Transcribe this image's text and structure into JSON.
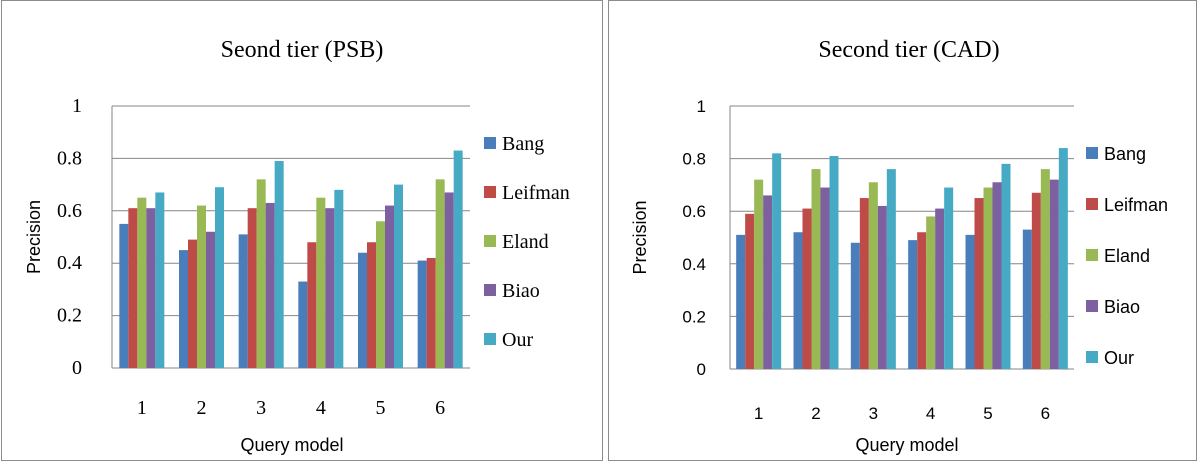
{
  "chart_data": [
    {
      "type": "bar",
      "title": "Seond tier (PSB)",
      "xlabel": "Query model",
      "ylabel": "Precision",
      "categories": [
        "1",
        "2",
        "3",
        "4",
        "5",
        "6"
      ],
      "yticks": [
        "0",
        "0.2",
        "0.4",
        "0.6",
        "0.8",
        "1"
      ],
      "ylim": [
        0,
        1
      ],
      "grid": true,
      "legend_position": "right",
      "series": [
        {
          "name": "Bang",
          "color": "#4a7ebb",
          "values": [
            0.55,
            0.45,
            0.51,
            0.33,
            0.44,
            0.41
          ]
        },
        {
          "name": "Leifman",
          "color": "#be4b48",
          "values": [
            0.61,
            0.49,
            0.61,
            0.48,
            0.48,
            0.42
          ]
        },
        {
          "name": "Eland",
          "color": "#98b954",
          "values": [
            0.65,
            0.62,
            0.72,
            0.65,
            0.56,
            0.72
          ]
        },
        {
          "name": "Biao",
          "color": "#7d60a0",
          "values": [
            0.61,
            0.52,
            0.63,
            0.61,
            0.62,
            0.67
          ]
        },
        {
          "name": "Our",
          "color": "#46aac5",
          "values": [
            0.67,
            0.69,
            0.79,
            0.68,
            0.7,
            0.83
          ]
        }
      ]
    },
    {
      "type": "bar",
      "title": "Second tier (CAD)",
      "xlabel": "Query model",
      "ylabel": "Precision",
      "categories": [
        "1",
        "2",
        "3",
        "4",
        "5",
        "6"
      ],
      "yticks": [
        "0",
        "0.2",
        "0.4",
        "0.6",
        "0.8",
        "1"
      ],
      "ylim": [
        0,
        1
      ],
      "grid": true,
      "legend_position": "right",
      "series": [
        {
          "name": "Bang",
          "color": "#4a7ebb",
          "values": [
            0.51,
            0.52,
            0.48,
            0.49,
            0.51,
            0.53
          ]
        },
        {
          "name": "Leifman",
          "color": "#be4b48",
          "values": [
            0.59,
            0.61,
            0.65,
            0.52,
            0.65,
            0.67
          ]
        },
        {
          "name": "Eland",
          "color": "#98b954",
          "values": [
            0.72,
            0.76,
            0.71,
            0.58,
            0.69,
            0.76
          ]
        },
        {
          "name": "Biao",
          "color": "#7d60a0",
          "values": [
            0.66,
            0.69,
            0.62,
            0.61,
            0.71,
            0.72
          ]
        },
        {
          "name": "Our",
          "color": "#46aac5",
          "values": [
            0.82,
            0.81,
            0.76,
            0.69,
            0.78,
            0.84
          ]
        }
      ]
    }
  ]
}
